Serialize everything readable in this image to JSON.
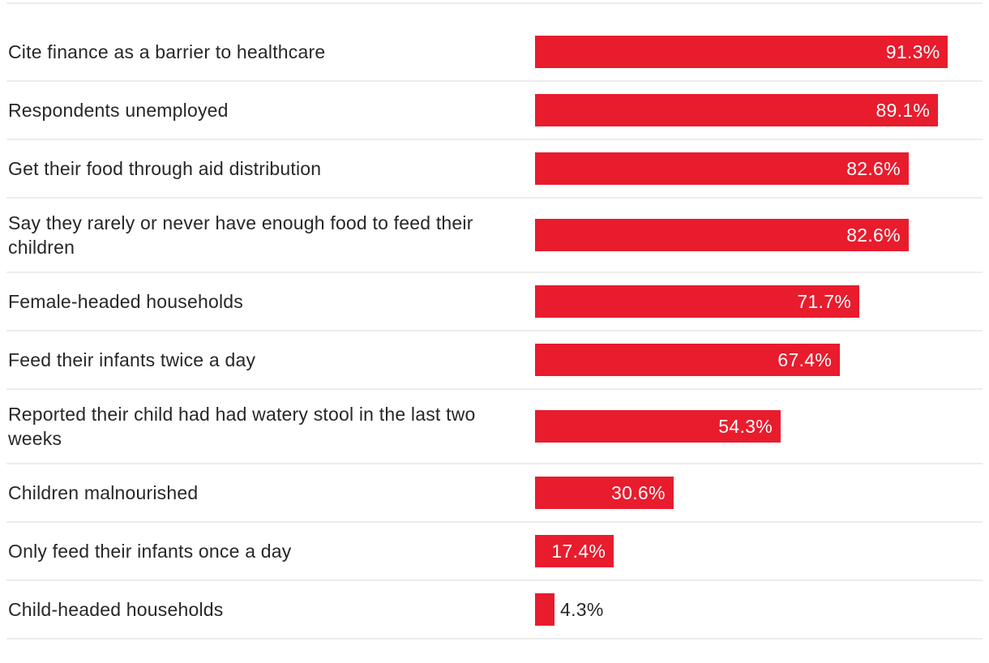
{
  "chart_data": {
    "type": "bar",
    "orientation": "horizontal",
    "title": "",
    "categories": [
      "Cite finance as a barrier to healthcare",
      "Respondents unemployed",
      "Get their food through aid distribution",
      "Say they rarely or never have enough food to feed their children",
      "Female-headed households",
      "Feed their infants twice a day",
      "Reported their child had had watery stool in the last two weeks",
      "Children malnourished",
      "Only feed their infants once a day",
      "Child-headed households"
    ],
    "values": [
      91.3,
      89.1,
      82.6,
      82.6,
      71.7,
      67.4,
      54.3,
      30.6,
      17.4,
      4.3
    ],
    "value_labels": [
      "91.3%",
      "89.1%",
      "82.6%",
      "82.6%",
      "71.7%",
      "67.4%",
      "54.3%",
      "30.6%",
      "17.4%",
      "4.3%"
    ],
    "unit": "%",
    "xlim": [
      0,
      100
    ],
    "grid": false,
    "legend": false,
    "value_label_position": "inside-end, outside-end for smallest bar",
    "colors": {
      "bar": "#e81c2d",
      "label_text": "#272727",
      "value_text_inside": "#ffffff",
      "value_text_outside": "#272727",
      "divider": "#ececec",
      "background": "#ffffff"
    }
  }
}
